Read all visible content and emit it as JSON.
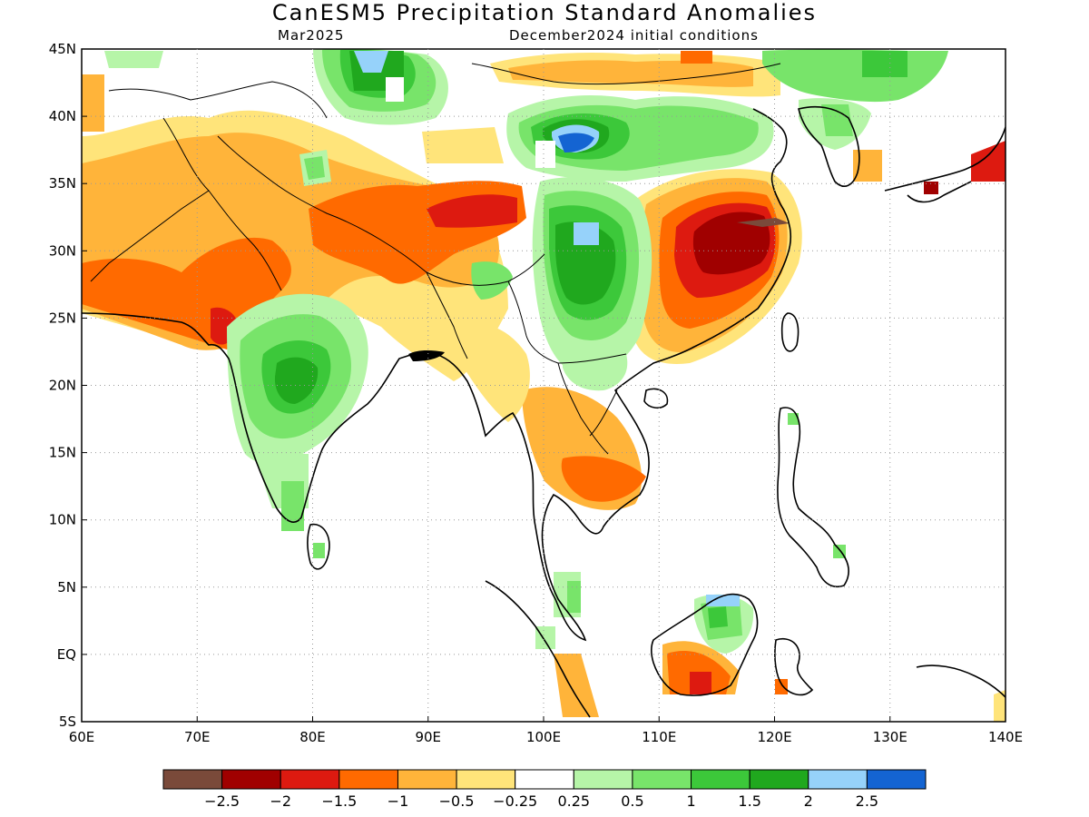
{
  "title": "CanESM5 Precipitation Standard Anomalies",
  "valid_month": "Mar2025",
  "init_conditions": "December2024 initial conditions",
  "lat_labels": [
    "45N",
    "40N",
    "35N",
    "30N",
    "25N",
    "20N",
    "15N",
    "10N",
    "5N",
    "EQ",
    "5S"
  ],
  "lon_labels": [
    "60E",
    "70E",
    "80E",
    "90E",
    "100E",
    "110E",
    "120E",
    "130E",
    "140E"
  ],
  "colorbar": {
    "colors": [
      "#7a4a3a",
      "#a00000",
      "#dd1a10",
      "#ff6a00",
      "#ffb43a",
      "#ffe47a",
      "#ffffff",
      "#b6f5a8",
      "#78e46a",
      "#3cc83a",
      "#20a81e",
      "#96d2fa",
      "#1464d2"
    ],
    "labels": [
      "−2.5",
      "−2",
      "−1.5",
      "−1",
      "−0.5",
      "−0.25",
      "0.25",
      "0.5",
      "1",
      "1.5",
      "2",
      "2.5"
    ]
  }
}
